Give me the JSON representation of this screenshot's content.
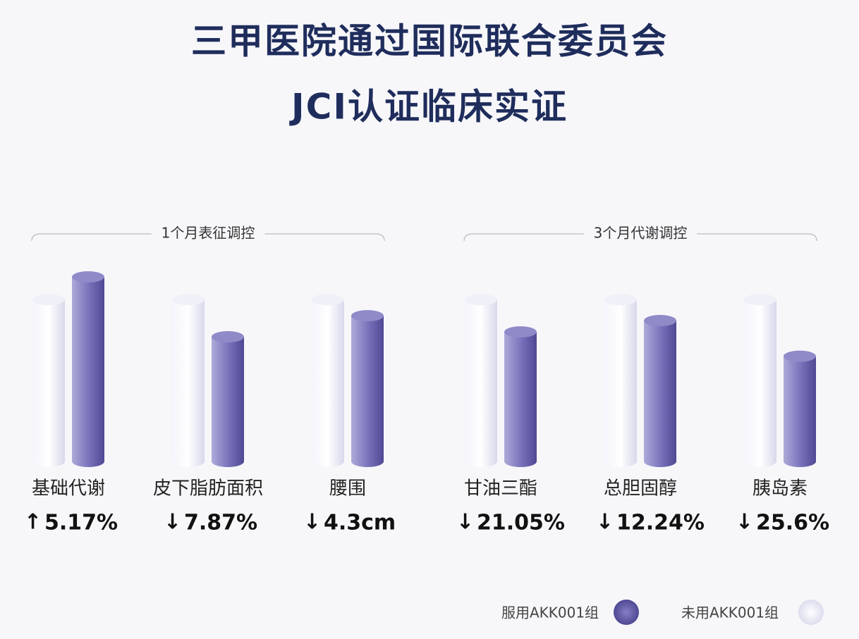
{
  "chart_data": {
    "type": "bar",
    "title": [
      "三甲医院通过国际联合委员会",
      "JCI认证临床实证"
    ],
    "groups": [
      {
        "label": "1个月表征调控",
        "from": 0,
        "to": 2
      },
      {
        "label": "3个月代谢调控",
        "from": 3,
        "to": 5
      }
    ],
    "categories": [
      "基础代谢",
      "皮下脂肪面积",
      "腰围",
      "甘油三酯",
      "总胆固醇",
      "胰岛素"
    ],
    "directions": [
      "↑",
      "↓",
      "↓",
      "↓",
      "↓",
      "↓"
    ],
    "changes": [
      "5.17%",
      "7.87%",
      "4.3cm",
      "21.05%",
      "12.24%",
      "25.6%"
    ],
    "series": [
      {
        "name": "未用AKK001组",
        "color": "#e6e6f4",
        "values": [
          100,
          100,
          100,
          100,
          100,
          100
        ]
      },
      {
        "name": "服用AKK001组",
        "color": "#6a64ad",
        "values": [
          114,
          77,
          90,
          80,
          87,
          65
        ]
      }
    ]
  }
}
